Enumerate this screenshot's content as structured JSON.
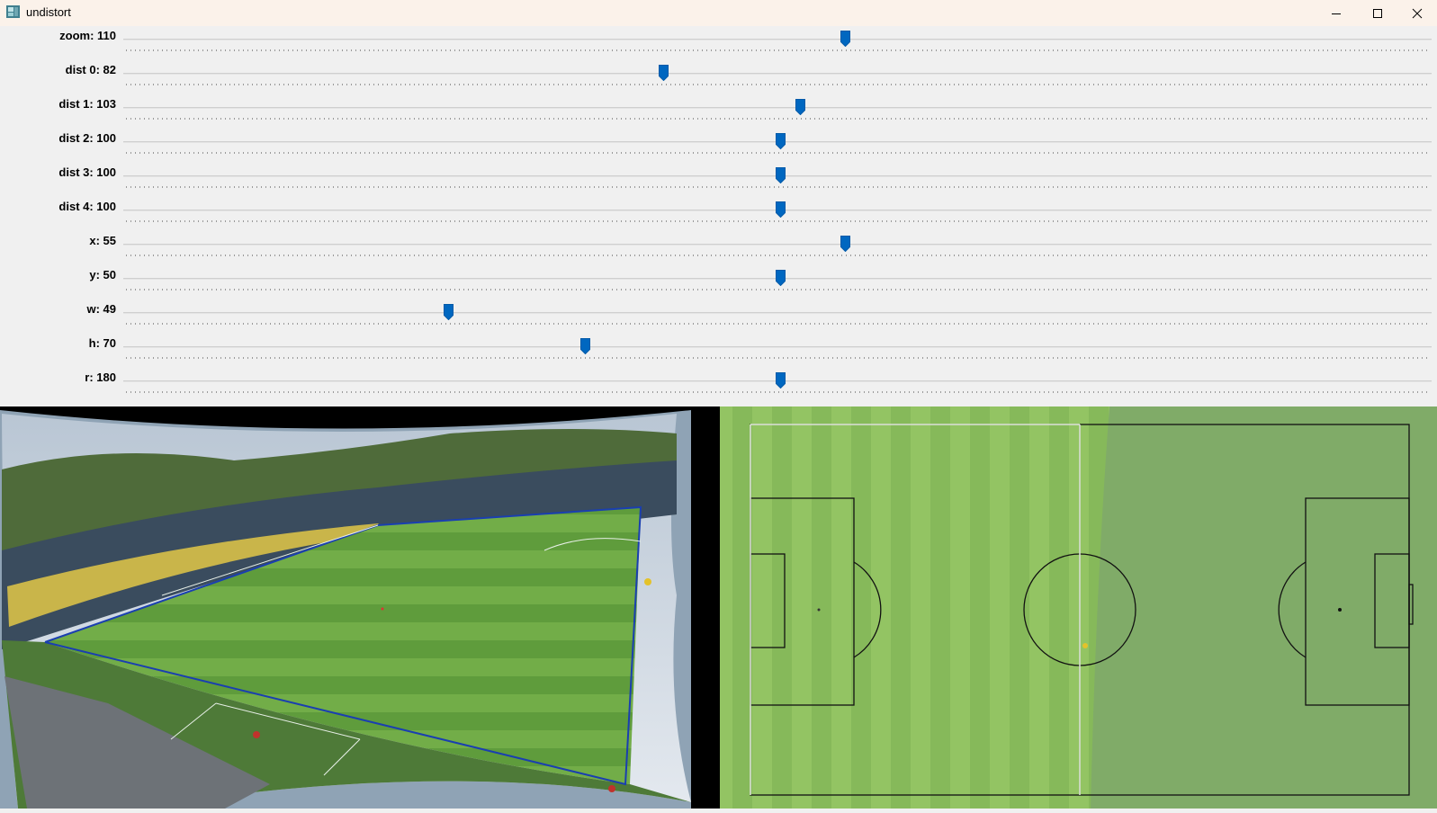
{
  "window": {
    "title": "undistort",
    "controls": [
      "minimize-icon",
      "maximize-icon",
      "close-icon"
    ]
  },
  "sliders": [
    {
      "label": "zoom: 110",
      "value": 110,
      "max": 200
    },
    {
      "label": "dist 0: 82",
      "value": 82,
      "max": 200
    },
    {
      "label": "dist 1: 103",
      "value": 103,
      "max": 200
    },
    {
      "label": "dist 2: 100",
      "value": 100,
      "max": 200
    },
    {
      "label": "dist 3: 100",
      "value": 100,
      "max": 200
    },
    {
      "label": "dist 4: 100",
      "value": 100,
      "max": 200
    },
    {
      "label": "x: 55",
      "value": 55,
      "max": 100
    },
    {
      "label": "y: 50",
      "value": 50,
      "max": 100
    },
    {
      "label": "w: 49",
      "value": 49,
      "max": 200
    },
    {
      "label": "h: 70",
      "value": 70,
      "max": 200
    },
    {
      "label": "r: 180",
      "value": 180,
      "max": 360
    }
  ],
  "colors": {
    "accent": "#0067c0",
    "pitch_dark": "#5e9a3a",
    "pitch_light": "#7fb84e",
    "template_green": "#80ab68",
    "titlebar": "#fbf2ea"
  }
}
